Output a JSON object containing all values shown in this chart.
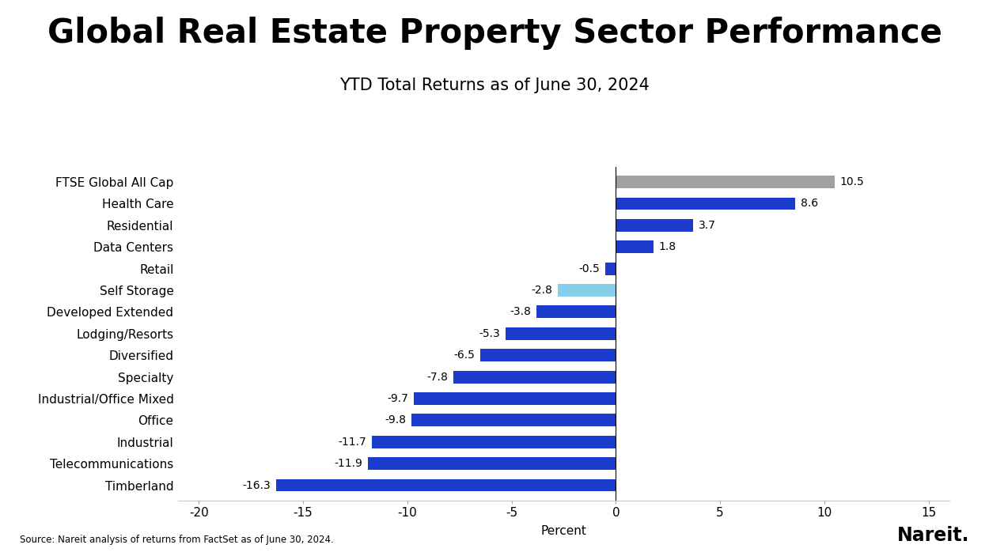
{
  "title": "Global Real Estate Property Sector Performance",
  "subtitle": "YTD Total Returns as of June 30, 2024",
  "xlabel": "Percent",
  "source": "Source: Nareit analysis of returns from FactSet as of June 30, 2024.",
  "nareit_label": "Nareit.",
  "categories": [
    "FTSE Global All Cap",
    "Health Care",
    "Residential",
    "Data Centers",
    "Retail",
    "Self Storage",
    "Developed Extended",
    "Lodging/Resorts",
    "Diversified",
    "Specialty",
    "Industrial/Office Mixed",
    "Office",
    "Industrial",
    "Telecommunications",
    "Timberland"
  ],
  "values": [
    10.5,
    8.6,
    3.7,
    1.8,
    -0.5,
    -2.8,
    -3.8,
    -5.3,
    -6.5,
    -7.8,
    -9.7,
    -9.8,
    -11.7,
    -11.9,
    -16.3
  ],
  "colors": [
    "#a0a0a0",
    "#1a3bcc",
    "#1a3bcc",
    "#1a3bcc",
    "#1a3bcc",
    "#87ceeb",
    "#1a3bcc",
    "#1a3bcc",
    "#1a3bcc",
    "#1a3bcc",
    "#1a3bcc",
    "#1a3bcc",
    "#1a3bcc",
    "#1a3bcc",
    "#1a3bcc"
  ],
  "xlim": [
    -21,
    16
  ],
  "xticks": [
    -20,
    -15,
    -10,
    -5,
    0,
    5,
    10,
    15
  ],
  "background_color": "#ffffff",
  "title_fontsize": 30,
  "subtitle_fontsize": 15,
  "label_fontsize": 11,
  "tick_fontsize": 11,
  "value_label_fontsize": 10,
  "bar_height": 0.58
}
